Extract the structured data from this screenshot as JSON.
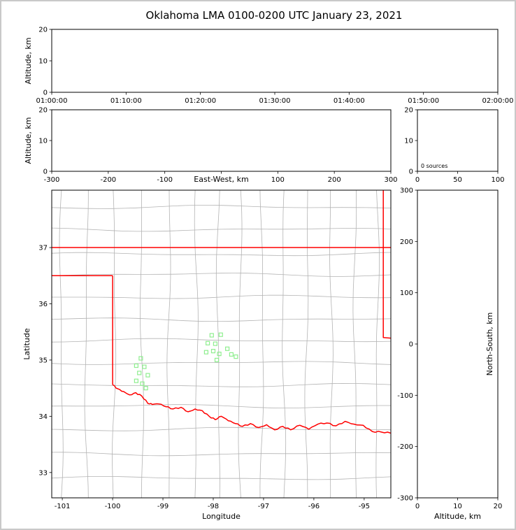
{
  "title": "Oklahoma LMA 0100-0200 UTC January 23, 2021",
  "colors": {
    "frame": "#000000",
    "county_border": "#b3b3b3",
    "state_border": "#ff0000",
    "station_marker": "#90ee90",
    "background": "#ffffff",
    "outer_border": "#c9c9c9"
  },
  "chart_data": [
    {
      "id": "time-height",
      "type": "scatter",
      "ylabel": "Altitude, km",
      "ylim": [
        0,
        20
      ],
      "yticks": [
        0,
        10,
        20
      ],
      "xtick_labels": [
        "01:00:00",
        "01:10:00",
        "01:20:00",
        "01:30:00",
        "01:40:00",
        "01:50:00",
        "02:00:00"
      ],
      "points": []
    },
    {
      "id": "ew-height",
      "type": "scatter",
      "xlabel": "East-West, km",
      "ylabel": "Altitude, km",
      "xlim": [
        -300,
        300
      ],
      "ylim": [
        0,
        20
      ],
      "xticks": [
        -300,
        -200,
        -100,
        0,
        100,
        200,
        300
      ],
      "xtick_labels": [
        "-300",
        "-200",
        "-100",
        "",
        "100",
        "200",
        "300"
      ],
      "yticks": [
        0,
        10,
        20
      ],
      "points": []
    },
    {
      "id": "altitude-histogram",
      "type": "line",
      "xlim": [
        0,
        100
      ],
      "ylim": [
        0,
        20
      ],
      "xticks": [
        0,
        50,
        100
      ],
      "xtick_labels": [
        "0",
        "50",
        "100"
      ],
      "yticks": [
        0,
        10,
        20
      ],
      "annotation": "0 sources",
      "points": []
    },
    {
      "id": "plan-view",
      "type": "scatter",
      "xlabel": "Longitude",
      "ylabel": "Latitude",
      "xlim": [
        -101.21,
        -94.47
      ],
      "ylim": [
        32.55,
        38.02
      ],
      "xticks": [
        -101,
        -100,
        -99,
        -98,
        -97,
        -96,
        -95
      ],
      "yticks": [
        33,
        34,
        35,
        36,
        37
      ],
      "stations": [
        [
          -98.03,
          35.44
        ],
        [
          -97.85,
          35.45
        ],
        [
          -98.11,
          35.3
        ],
        [
          -97.96,
          35.29
        ],
        [
          -98.14,
          35.14
        ],
        [
          -98.0,
          35.16
        ],
        [
          -97.88,
          35.11
        ],
        [
          -97.72,
          35.2
        ],
        [
          -97.64,
          35.1
        ],
        [
          -97.55,
          35.06
        ],
        [
          -97.93,
          35.0
        ],
        [
          -99.44,
          35.03
        ],
        [
          -99.53,
          34.9
        ],
        [
          -99.37,
          34.88
        ],
        [
          -99.47,
          34.77
        ],
        [
          -99.3,
          34.73
        ],
        [
          -99.53,
          34.63
        ],
        [
          -99.41,
          34.58
        ],
        [
          -99.34,
          34.5
        ]
      ],
      "state_borders": [
        {
          "name": "kansas-oklahoma",
          "points": [
            [
              -101.21,
              37.0
            ],
            [
              -94.47,
              37.0
            ]
          ]
        },
        {
          "name": "panhandle-south",
          "points": [
            [
              -101.21,
              36.5
            ],
            [
              -100.0,
              36.5
            ]
          ]
        },
        {
          "name": "texas-west",
          "points": [
            [
              -100.0,
              36.5
            ],
            [
              -100.0,
              34.56
            ]
          ]
        },
        {
          "name": "missouri-arkansas-west",
          "points": [
            [
              -94.62,
              38.02
            ],
            [
              -94.62,
              35.4
            ],
            [
              -94.47,
              35.39
            ]
          ]
        },
        {
          "name": "red-river",
          "wiggle": true,
          "points": [
            [
              -100.0,
              34.56
            ],
            [
              -99.9,
              34.49
            ],
            [
              -99.78,
              34.44
            ],
            [
              -99.66,
              34.38
            ],
            [
              -99.54,
              34.42
            ],
            [
              -99.42,
              34.36
            ],
            [
              -99.3,
              34.23
            ],
            [
              -99.21,
              34.21
            ],
            [
              -99.08,
              34.22
            ],
            [
              -98.94,
              34.17
            ],
            [
              -98.8,
              34.13
            ],
            [
              -98.64,
              34.16
            ],
            [
              -98.5,
              34.08
            ],
            [
              -98.36,
              34.13
            ],
            [
              -98.22,
              34.1
            ],
            [
              -98.08,
              34.0
            ],
            [
              -97.96,
              33.94
            ],
            [
              -97.84,
              34.0
            ],
            [
              -97.7,
              33.92
            ],
            [
              -97.56,
              33.87
            ],
            [
              -97.42,
              33.82
            ],
            [
              -97.26,
              33.87
            ],
            [
              -97.1,
              33.8
            ],
            [
              -96.94,
              33.85
            ],
            [
              -96.78,
              33.76
            ],
            [
              -96.62,
              33.82
            ],
            [
              -96.46,
              33.76
            ],
            [
              -96.28,
              33.84
            ],
            [
              -96.1,
              33.77
            ],
            [
              -95.92,
              33.86
            ],
            [
              -95.74,
              33.88
            ],
            [
              -95.56,
              33.83
            ],
            [
              -95.38,
              33.91
            ],
            [
              -95.2,
              33.86
            ],
            [
              -95.02,
              33.84
            ],
            [
              -94.84,
              33.73
            ],
            [
              -94.66,
              33.72
            ],
            [
              -94.47,
              33.7
            ]
          ]
        }
      ],
      "county_meridians": [
        -101.02,
        -100.52,
        -99.97,
        -99.42,
        -98.88,
        -98.34,
        -97.9,
        -97.47,
        -97.03,
        -96.6,
        -96.14,
        -95.66,
        -95.18,
        -94.74
      ],
      "county_parallels": [
        32.9,
        33.33,
        33.77,
        34.18,
        34.55,
        34.95,
        35.35,
        35.72,
        36.12,
        36.52,
        36.88,
        37.32,
        37.72
      ]
    },
    {
      "id": "ns-height",
      "type": "scatter",
      "xlabel": "Altitude, km",
      "ylabel": "North-South, km",
      "xlim": [
        0,
        20
      ],
      "ylim": [
        -300,
        300
      ],
      "xticks": [
        0,
        10,
        20
      ],
      "xtick_labels": [
        "0",
        "10",
        "20"
      ],
      "yticks": [
        -300,
        -200,
        -100,
        0,
        100,
        200,
        300
      ],
      "points": []
    }
  ]
}
